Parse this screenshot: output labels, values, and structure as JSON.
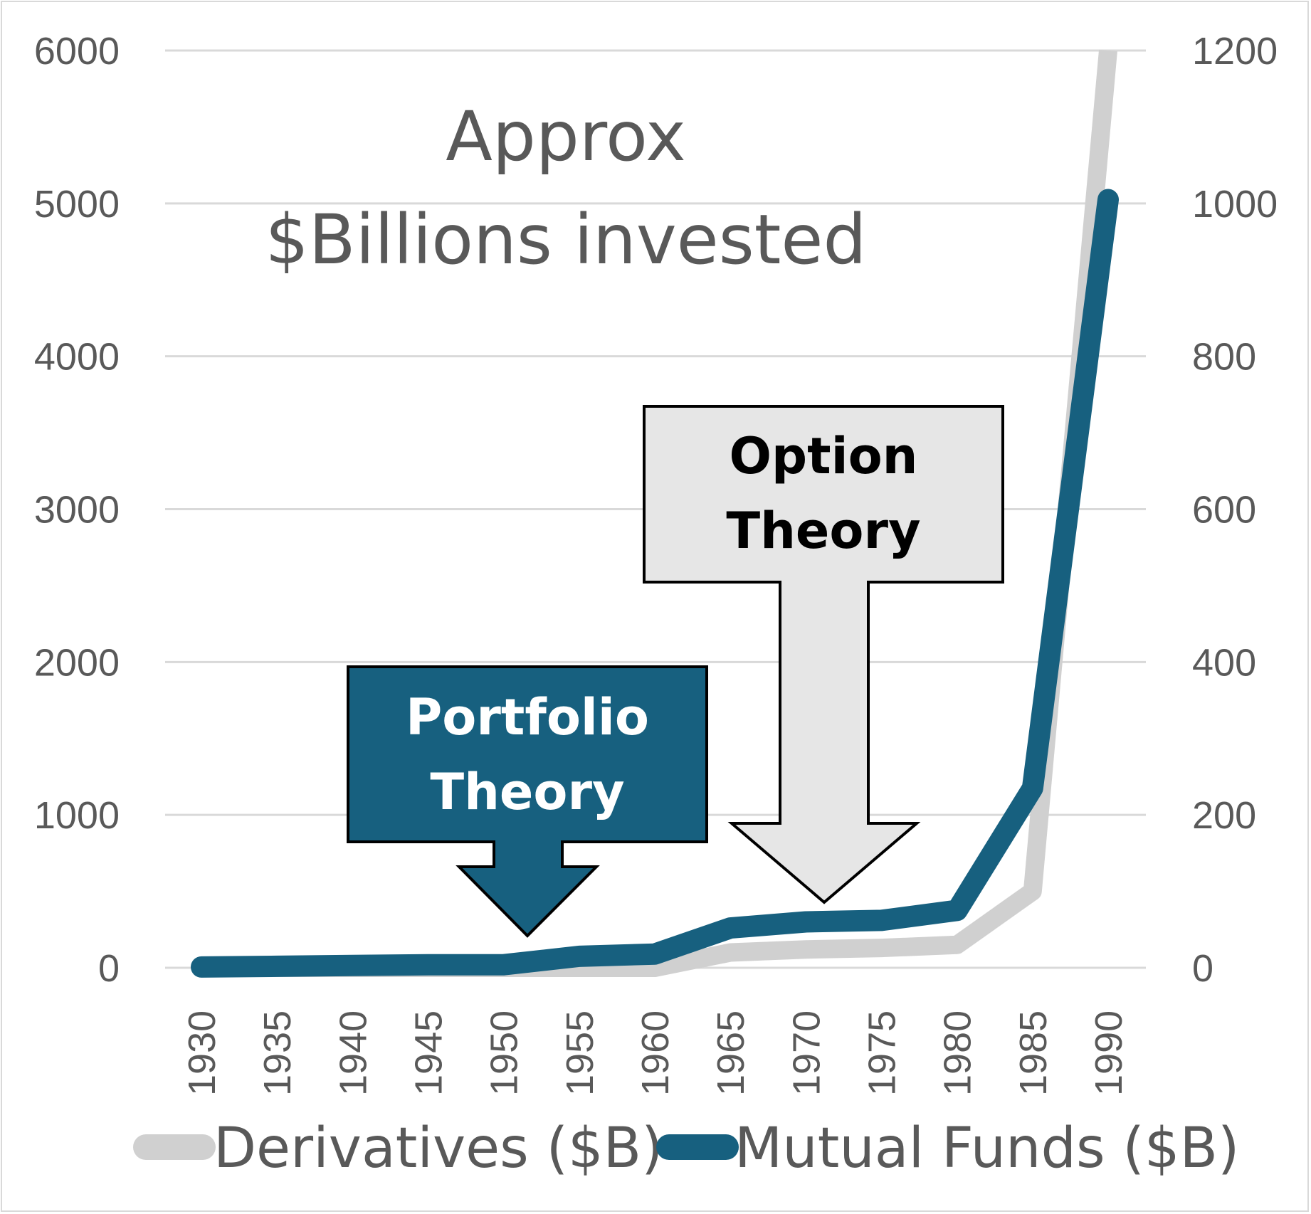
{
  "chart_data": {
    "type": "line",
    "title": "Approx $Billions invested",
    "title_lines": [
      "Approx",
      "$Billions invested"
    ],
    "categories": [
      "1930",
      "1935",
      "1940",
      "1945",
      "1950",
      "1955",
      "1960",
      "1965",
      "1970",
      "1975",
      "1980",
      "1985",
      "1990"
    ],
    "series": [
      {
        "name": "Derivatives ($B)",
        "axis": "left",
        "color": "#d0d0d0",
        "values": [
          0,
          0,
          0,
          0,
          0,
          0,
          0,
          100,
          120,
          130,
          150,
          500,
          6000
        ]
      },
      {
        "name": "Mutual Funds ($B)",
        "axis": "right",
        "color": "#17607f",
        "values": [
          1,
          2,
          3,
          4,
          4,
          15,
          18,
          52,
          60,
          62,
          75,
          235,
          1005
        ]
      }
    ],
    "y_left": {
      "min": 0,
      "max": 6000,
      "ticks": [
        "0",
        "1000",
        "2000",
        "3000",
        "4000",
        "5000",
        "6000"
      ]
    },
    "y_right": {
      "min": 0,
      "max": 1200,
      "ticks": [
        "0",
        "200",
        "400",
        "600",
        "800",
        "1000",
        "1200"
      ]
    },
    "grid": true,
    "legend_position": "bottom",
    "annotations": [
      {
        "id": "portfolio",
        "lines": [
          "Portfolio",
          "Theory"
        ],
        "fill": "#17607f",
        "text_color": "#ffffff",
        "points_to": "1951"
      },
      {
        "id": "option",
        "lines": [
          "Option",
          "Theory"
        ],
        "fill": "#e6e6e6",
        "text_color": "#000000",
        "points_to": "1971"
      }
    ]
  },
  "colors": {
    "grid": "#d9d9d9",
    "text": "#595959",
    "derivatives": "#d0d0d0",
    "mutual_funds": "#17607f"
  }
}
